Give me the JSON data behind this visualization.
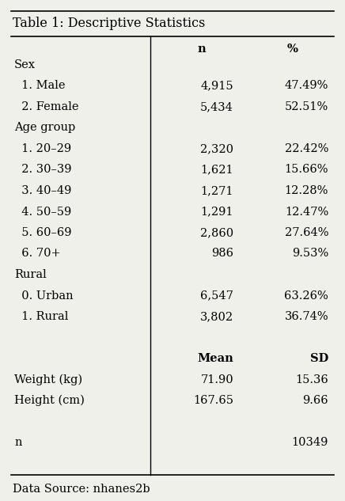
{
  "title": "Table 1: Descriptive Statistics",
  "rows": [
    {
      "label": "Sex",
      "n": "",
      "pct": "",
      "indent": 0,
      "bold_n": false,
      "bold_pct": false
    },
    {
      "label": "  1. Male",
      "n": "4,915",
      "pct": "47.49%",
      "indent": 1,
      "bold_n": false,
      "bold_pct": false
    },
    {
      "label": "  2. Female",
      "n": "5,434",
      "pct": "52.51%",
      "indent": 1,
      "bold_n": false,
      "bold_pct": false
    },
    {
      "label": "Age group",
      "n": "",
      "pct": "",
      "indent": 0,
      "bold_n": false,
      "bold_pct": false
    },
    {
      "label": "  1. 20–29",
      "n": "2,320",
      "pct": "22.42%",
      "indent": 1,
      "bold_n": false,
      "bold_pct": false
    },
    {
      "label": "  2. 30–39",
      "n": "1,621",
      "pct": "15.66%",
      "indent": 1,
      "bold_n": false,
      "bold_pct": false
    },
    {
      "label": "  3. 40–49",
      "n": "1,271",
      "pct": "12.28%",
      "indent": 1,
      "bold_n": false,
      "bold_pct": false
    },
    {
      "label": "  4. 50–59",
      "n": "1,291",
      "pct": "12.47%",
      "indent": 1,
      "bold_n": false,
      "bold_pct": false
    },
    {
      "label": "  5. 60–69",
      "n": "2,860",
      "pct": "27.64%",
      "indent": 1,
      "bold_n": false,
      "bold_pct": false
    },
    {
      "label": "  6. 70+",
      "n": "986",
      "pct": "9.53%",
      "indent": 1,
      "bold_n": false,
      "bold_pct": false
    },
    {
      "label": "Rural",
      "n": "",
      "pct": "",
      "indent": 0,
      "bold_n": false,
      "bold_pct": false
    },
    {
      "label": "  0. Urban",
      "n": "6,547",
      "pct": "63.26%",
      "indent": 1,
      "bold_n": false,
      "bold_pct": false
    },
    {
      "label": "  1. Rural",
      "n": "3,802",
      "pct": "36.74%",
      "indent": 1,
      "bold_n": false,
      "bold_pct": false
    },
    {
      "label": "",
      "n": "",
      "pct": "",
      "indent": 0,
      "bold_n": false,
      "bold_pct": false
    },
    {
      "label": "",
      "n": "Mean",
      "pct": "SD",
      "indent": 0,
      "bold_n": true,
      "bold_pct": true
    },
    {
      "label": "Weight (kg)",
      "n": "71.90",
      "pct": "15.36",
      "indent": 0,
      "bold_n": false,
      "bold_pct": false
    },
    {
      "label": "Height (cm)",
      "n": "167.65",
      "pct": "9.66",
      "indent": 0,
      "bold_n": false,
      "bold_pct": false
    },
    {
      "label": "",
      "n": "",
      "pct": "",
      "indent": 0,
      "bold_n": false,
      "bold_pct": false
    },
    {
      "label": "n",
      "n": "",
      "pct": "10349",
      "indent": 0,
      "bold_n": false,
      "bold_pct": false
    }
  ],
  "footer": "Data Source: nhanes2b",
  "bg_color": "#f0f0eb",
  "font_size": 10.5,
  "title_font_size": 11.5,
  "header_n": "n",
  "header_pct": "%"
}
